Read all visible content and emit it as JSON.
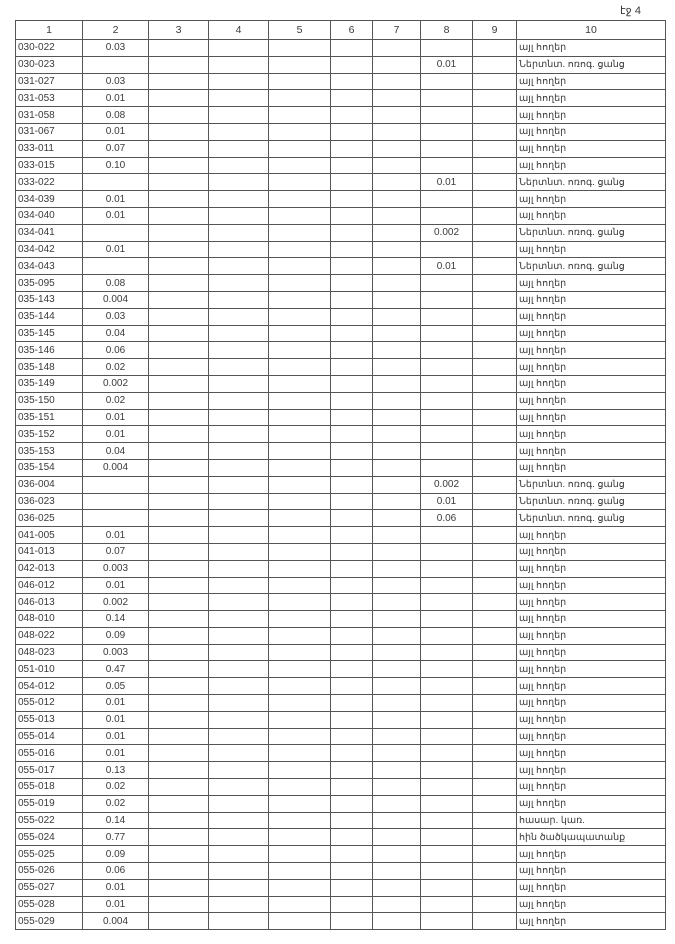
{
  "page_label": "էջ 4",
  "columns": [
    "1",
    "2",
    "3",
    "4",
    "5",
    "6",
    "7",
    "8",
    "9",
    "10"
  ],
  "rows": [
    [
      "030-022",
      "0.03",
      "",
      "այլ հողեր"
    ],
    [
      "030-023",
      "",
      "0.01",
      "Ներտնտ. ոռոգ. ցանց"
    ],
    [
      "031-027",
      "0.03",
      "",
      "այլ հողեր"
    ],
    [
      "031-053",
      "0.01",
      "",
      "այլ հողեր"
    ],
    [
      "031-058",
      "0.08",
      "",
      "այլ հողեր"
    ],
    [
      "031-067",
      "0.01",
      "",
      "այլ հողեր"
    ],
    [
      "033-011",
      "0.07",
      "",
      "այլ հողեր"
    ],
    [
      "033-015",
      "0.10",
      "",
      "այլ հողեր"
    ],
    [
      "033-022",
      "",
      "0.01",
      "Ներտնտ. ոռոգ. ցանց"
    ],
    [
      "034-039",
      "0.01",
      "",
      "այլ հողեր"
    ],
    [
      "034-040",
      "0.01",
      "",
      "այլ հողեր"
    ],
    [
      "034-041",
      "",
      "0.002",
      "Ներտնտ. ոռոգ. ցանց"
    ],
    [
      "034-042",
      "0.01",
      "",
      "այլ հողեր"
    ],
    [
      "034-043",
      "",
      "0.01",
      "Ներտնտ. ոռոգ. ցանց"
    ],
    [
      "035-095",
      "0.08",
      "",
      "այլ հողեր"
    ],
    [
      "035-143",
      "0.004",
      "",
      "այլ հողեր"
    ],
    [
      "035-144",
      "0.03",
      "",
      "այլ հողեր"
    ],
    [
      "035-145",
      "0.04",
      "",
      "այլ հողեր"
    ],
    [
      "035-146",
      "0.06",
      "",
      "այլ հողեր"
    ],
    [
      "035-148",
      "0.02",
      "",
      "այլ հողեր"
    ],
    [
      "035-149",
      "0.002",
      "",
      "այլ հողեր"
    ],
    [
      "035-150",
      "0.02",
      "",
      "այլ հողեր"
    ],
    [
      "035-151",
      "0.01",
      "",
      "այլ հողեր"
    ],
    [
      "035-152",
      "0.01",
      "",
      "այլ հողեր"
    ],
    [
      "035-153",
      "0.04",
      "",
      "այլ հողեր"
    ],
    [
      "035-154",
      "0.004",
      "",
      "այլ հողեր"
    ],
    [
      "036-004",
      "",
      "0.002",
      "Ներտնտ. ոռոգ. ցանց"
    ],
    [
      "036-023",
      "",
      "0.01",
      "Ներտնտ. ոռոգ. ցանց"
    ],
    [
      "036-025",
      "",
      "0.06",
      "Ներտնտ. ոռոգ. ցանց"
    ],
    [
      "041-005",
      "0.01",
      "",
      "այլ հողեր"
    ],
    [
      "041-013",
      "0.07",
      "",
      "այլ հողեր"
    ],
    [
      "042-013",
      "0.003",
      "",
      "այլ հողեր"
    ],
    [
      "046-012",
      "0.01",
      "",
      "այլ հողեր"
    ],
    [
      "046-013",
      "0.002",
      "",
      "այլ հողեր"
    ],
    [
      "048-010",
      "0.14",
      "",
      "այլ հողեր"
    ],
    [
      "048-022",
      "0.09",
      "",
      "այլ հողեր"
    ],
    [
      "048-023",
      "0.003",
      "",
      "այլ հողեր"
    ],
    [
      "051-010",
      "0.47",
      "",
      "այլ հողեր"
    ],
    [
      "054-012",
      "0.05",
      "",
      "այլ հողեր"
    ],
    [
      "055-012",
      "0.01",
      "",
      "այլ հողեր"
    ],
    [
      "055-013",
      "0.01",
      "",
      "այլ հողեր"
    ],
    [
      "055-014",
      "0.01",
      "",
      "այլ հողեր"
    ],
    [
      "055-016",
      "0.01",
      "",
      "այլ հողեր"
    ],
    [
      "055-017",
      "0.13",
      "",
      "այլ հողեր"
    ],
    [
      "055-018",
      "0.02",
      "",
      "այլ հողեր"
    ],
    [
      "055-019",
      "0.02",
      "",
      "այլ հողեր"
    ],
    [
      "055-022",
      "0.14",
      "",
      "հասար. կառ."
    ],
    [
      "055-024",
      "0.77",
      "",
      "հին ծածկապատանք"
    ],
    [
      "055-025",
      "0.09",
      "",
      "այլ հողեր"
    ],
    [
      "055-026",
      "0.06",
      "",
      "այլ հողեր"
    ],
    [
      "055-027",
      "0.01",
      "",
      "այլ հողեր"
    ],
    [
      "055-028",
      "0.01",
      "",
      "այլ հողեր"
    ],
    [
      "055-029",
      "0.004",
      "",
      "այլ հողեր"
    ]
  ]
}
